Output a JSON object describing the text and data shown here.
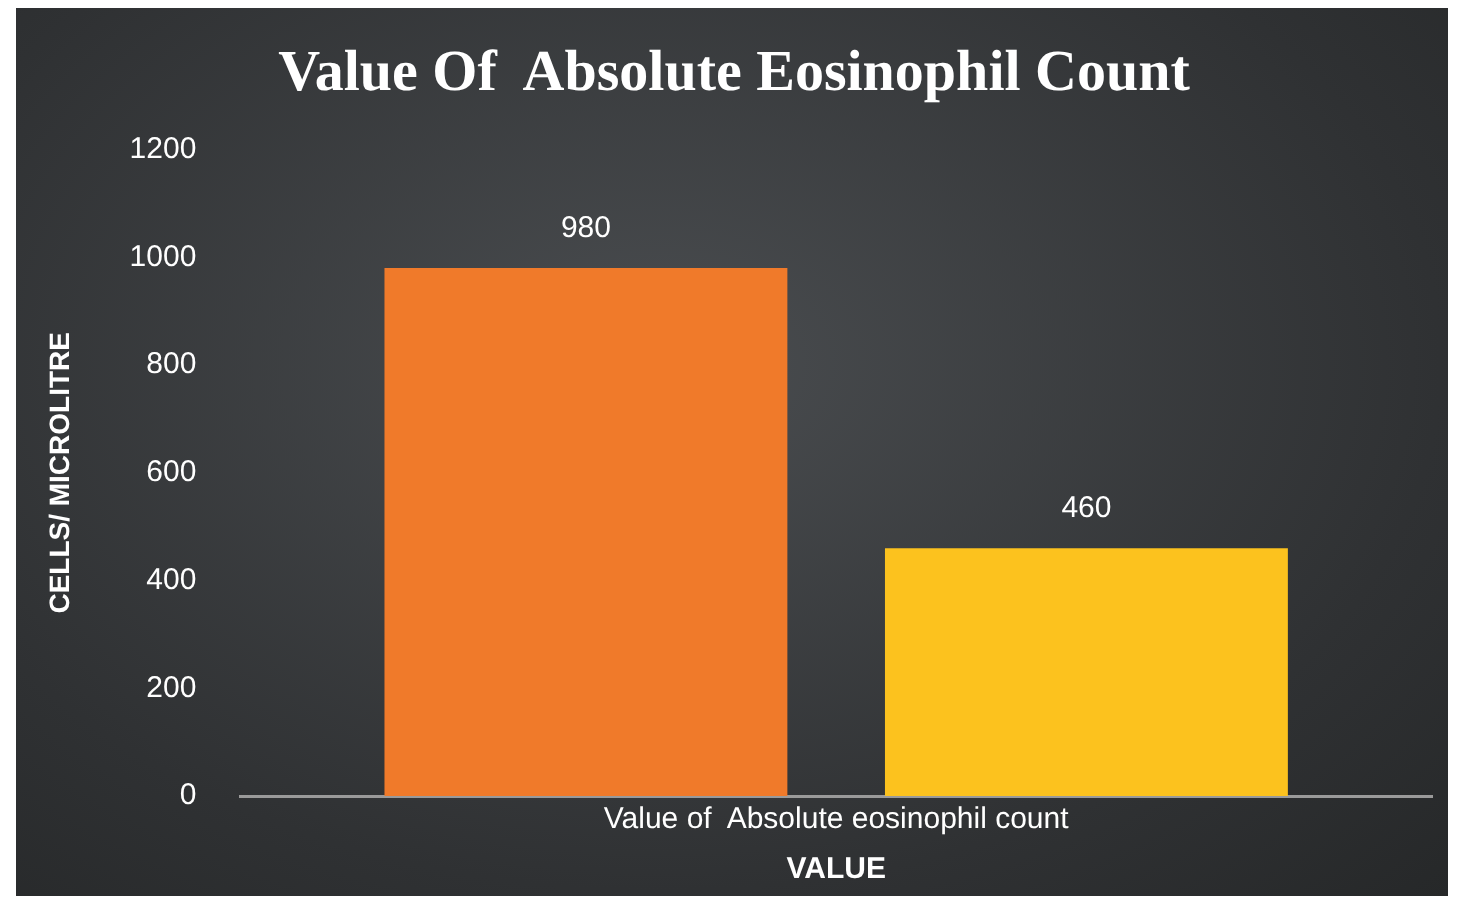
{
  "chart_data": {
    "type": "bar",
    "title": "Value Of  Absolute Eosinophil Count",
    "xlabel": "VALUE",
    "ylabel": "CELLS/ MICROLITRE",
    "categories": [
      "Value of  Absolute eosinophil count"
    ],
    "series": [
      {
        "color": "#f07a2a",
        "values": [
          980
        ]
      },
      {
        "color": "#fcc21e",
        "values": [
          460
        ]
      }
    ],
    "ylim": [
      0,
      1200
    ],
    "yticks": [
      0,
      200,
      400,
      600,
      800,
      1000,
      1200
    ],
    "grid": false,
    "legend": false,
    "data_labels": true
  }
}
